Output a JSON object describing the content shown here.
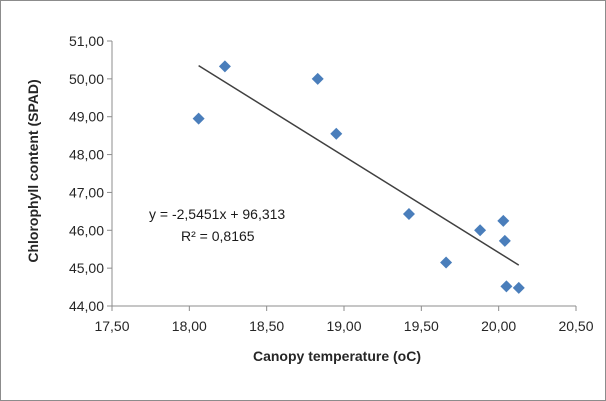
{
  "chart_data": {
    "type": "scatter",
    "title": "",
    "xlabel": "Canopy temperature  (oC)",
    "ylabel": "Chlorophyll content (SPAD)",
    "xlim": [
      17.5,
      20.5
    ],
    "ylim": [
      44.0,
      51.0
    ],
    "x_ticks": [
      "17,50",
      "18,00",
      "18,50",
      "19,00",
      "19,50",
      "20,00",
      "20,50"
    ],
    "y_ticks": [
      "44,00",
      "45,00",
      "46,00",
      "47,00",
      "48,00",
      "49,00",
      "50,00",
      "51,00"
    ],
    "grid": false,
    "legend": "none",
    "marker_color": "#4a7ebb",
    "series": [
      {
        "x": [
          18.06,
          18.23,
          18.83,
          18.95,
          19.42,
          19.66,
          19.88,
          20.03,
          20.04,
          20.05,
          20.13
        ],
        "y": [
          48.95,
          50.33,
          50.0,
          48.55,
          46.43,
          45.15,
          46.0,
          46.25,
          45.72,
          44.52,
          44.48
        ]
      }
    ],
    "trendline": {
      "slope": -2.5451,
      "intercept": 96.313,
      "x_range": [
        18.06,
        20.13
      ],
      "color": "#404040"
    },
    "annotations": {
      "equation": "y = -2,5451x + 96,313",
      "r_squared": "R² = 0,8165"
    }
  }
}
